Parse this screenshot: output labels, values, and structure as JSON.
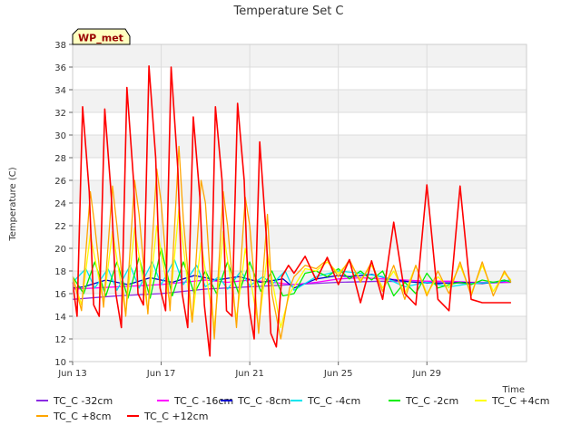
{
  "chart_data": {
    "type": "line",
    "title": "Temperature Set C",
    "ylabel": "Temperature (C)",
    "xlabel": "Time",
    "ylim": [
      10,
      38
    ],
    "xlim": [
      0,
      20.5
    ],
    "yticks": [
      10,
      12,
      14,
      16,
      18,
      20,
      22,
      24,
      26,
      28,
      30,
      32,
      34,
      36,
      38
    ],
    "xtick_positions": [
      0,
      4,
      8,
      12,
      16
    ],
    "xtick_labels": [
      "Jun 13",
      "Jun 17",
      "Jun 21",
      "Jun 25",
      "Jun 29"
    ],
    "grid": true,
    "badge": "WP_met",
    "colors": {
      "band": "#f2f2f2",
      "grid": "#dcdcdc",
      "badge_bg": "#ffffc0",
      "badge_text": "#990000"
    },
    "x_unit": "days since Jun 13",
    "series": [
      {
        "name": "TC_C -32cm",
        "color": "#8a2be2",
        "x": [
          0,
          2,
          4,
          6,
          8,
          10,
          12,
          14,
          16,
          18,
          19.8
        ],
        "y": [
          15.5,
          15.8,
          16.0,
          16.4,
          16.6,
          16.8,
          17.0,
          17.1,
          17.0,
          16.9,
          17.0
        ]
      },
      {
        "name": "TC_C -16cm",
        "color": "#ff00ff",
        "x": [
          0,
          1,
          2,
          3,
          4,
          5,
          6,
          7,
          8,
          9,
          10,
          11,
          12,
          13,
          14,
          15,
          16,
          17,
          18,
          19,
          19.8
        ],
        "y": [
          16.4,
          16.5,
          16.6,
          16.7,
          16.8,
          17.0,
          17.2,
          17.0,
          17.2,
          17.0,
          16.8,
          17.0,
          17.3,
          17.4,
          17.3,
          17.2,
          17.1,
          17.1,
          17.0,
          17.0,
          17.0
        ]
      },
      {
        "name": "TC_C -8cm",
        "color": "#0000cd",
        "x": [
          0,
          0.5,
          1.5,
          2.5,
          3.5,
          4.5,
          5.5,
          6.5,
          7.5,
          8.5,
          9.5,
          10,
          11,
          12,
          12.5,
          13.5,
          14.5,
          15.5,
          16.5,
          17.5,
          18.5,
          19.5,
          19.8
        ],
        "y": [
          16.5,
          16.6,
          17.2,
          16.8,
          17.4,
          17.0,
          17.6,
          17.2,
          17.5,
          17.0,
          17.3,
          16.5,
          17.3,
          17.6,
          17.5,
          17.7,
          17.2,
          17.0,
          16.9,
          17.0,
          16.9,
          17.1,
          17.2
        ]
      },
      {
        "name": "TC_C -4cm",
        "color": "#00e5ee",
        "x": [
          0,
          0.6,
          1.0,
          1.6,
          2.0,
          2.6,
          3.0,
          3.6,
          4.0,
          4.6,
          5.0,
          5.6,
          6.0,
          6.6,
          7.0,
          7.6,
          8.0,
          8.6,
          9.0,
          9.6,
          10.0,
          11,
          12,
          13,
          14,
          15,
          16,
          17,
          18,
          19,
          19.8
        ],
        "y": [
          17.0,
          18.2,
          16.5,
          18.2,
          16.3,
          18.5,
          16.5,
          18.8,
          16.8,
          19.0,
          16.8,
          18.5,
          16.6,
          17.5,
          16.4,
          18.0,
          16.7,
          17.5,
          16.8,
          18.0,
          16.3,
          17.5,
          18.0,
          17.8,
          17.5,
          16.6,
          17.0,
          16.6,
          16.9,
          17.0,
          17.2
        ]
      },
      {
        "name": "TC_C -2cm",
        "color": "#00ee00",
        "x": [
          0,
          0.5,
          1.0,
          1.5,
          2.0,
          2.5,
          3.0,
          3.5,
          4.0,
          4.5,
          5.0,
          5.5,
          6.0,
          6.5,
          7.0,
          7.5,
          8.0,
          8.5,
          9.0,
          9.5,
          10.0,
          10.5,
          11,
          11.5,
          12,
          12.5,
          13,
          13.5,
          14,
          14.5,
          15,
          15.5,
          16,
          16.5,
          17,
          17.5,
          18,
          18.5,
          19,
          19.5,
          19.8
        ],
        "y": [
          17.5,
          16.0,
          18.8,
          15.8,
          18.8,
          15.6,
          19.2,
          15.6,
          20.0,
          15.8,
          18.8,
          16.0,
          18.0,
          16.0,
          18.8,
          16.0,
          18.8,
          16.2,
          18.0,
          15.8,
          16.0,
          17.8,
          18.0,
          17.5,
          18.2,
          17.3,
          18.0,
          17.2,
          18.0,
          15.8,
          17.0,
          16.0,
          17.8,
          16.5,
          16.8,
          17.0,
          16.8,
          17.2,
          17.0,
          17.2,
          17.0
        ]
      },
      {
        "name": "TC_C +4cm",
        "color": "#ffff00",
        "x": [
          0,
          0.4,
          0.8,
          1.4,
          1.8,
          2.4,
          2.8,
          3.4,
          3.8,
          4.4,
          4.8,
          5.4,
          5.8,
          6.4,
          6.8,
          7.4,
          7.8,
          8.4,
          8.8,
          9.4,
          9.8,
          10.5,
          11,
          11.5,
          12,
          12.5,
          13,
          13.5,
          14,
          14.5,
          15,
          15.5,
          16,
          16.5,
          17,
          17.5,
          18,
          18.5,
          19,
          19.5,
          19.8
        ],
        "y": [
          17.5,
          15.0,
          21.2,
          15.2,
          21.5,
          14.2,
          21.8,
          14.5,
          22.0,
          15.0,
          23.5,
          13.5,
          20.5,
          13.0,
          21.5,
          13.8,
          20.0,
          13.0,
          19.5,
          13.0,
          16.0,
          18.2,
          18.0,
          18.8,
          17.8,
          18.8,
          17.2,
          18.5,
          16.5,
          18.0,
          16.0,
          18.5,
          16.0,
          17.5,
          16.5,
          18.5,
          16.0,
          18.5,
          16.2,
          17.8,
          17.2
        ]
      },
      {
        "name": "TC_C +8cm",
        "color": "#ffa500",
        "x": [
          0,
          0.4,
          0.8,
          1.0,
          1.4,
          1.8,
          2.0,
          2.4,
          2.8,
          3.0,
          3.4,
          3.8,
          4.0,
          4.4,
          4.8,
          5.0,
          5.4,
          5.8,
          6.0,
          6.4,
          6.8,
          7.0,
          7.4,
          7.8,
          8.0,
          8.4,
          8.8,
          9.0,
          9.4,
          9.8,
          10.0,
          10.5,
          11,
          11.5,
          12,
          12.5,
          13,
          13.5,
          14,
          14.5,
          15,
          15.5,
          16,
          16.5,
          17,
          17.5,
          18,
          18.5,
          19,
          19.5,
          19.8
        ],
        "y": [
          17.5,
          14.5,
          25.0,
          22.0,
          14.8,
          25.5,
          22.0,
          14.0,
          26.0,
          23.0,
          14.2,
          27.0,
          24.0,
          14.5,
          29.0,
          22.5,
          13.5,
          26.0,
          24.0,
          12.0,
          25.0,
          22.0,
          13.0,
          24.5,
          22.0,
          12.5,
          23.0,
          16.0,
          12.0,
          16.5,
          17.5,
          18.5,
          18.2,
          19.0,
          17.5,
          19.0,
          17.0,
          18.8,
          16.2,
          18.5,
          15.5,
          18.5,
          15.8,
          18.0,
          16.0,
          18.8,
          15.8,
          18.8,
          15.8,
          18.0,
          17.0
        ]
      },
      {
        "name": "TC_C +12cm",
        "color": "#ff0000",
        "x": [
          0,
          0.2,
          0.45,
          0.75,
          0.95,
          1.2,
          1.45,
          1.75,
          1.95,
          2.2,
          2.45,
          2.75,
          2.95,
          3.2,
          3.45,
          3.75,
          3.95,
          4.2,
          4.45,
          4.75,
          4.95,
          5.2,
          5.45,
          5.75,
          5.95,
          6.2,
          6.45,
          6.75,
          6.95,
          7.2,
          7.45,
          7.75,
          7.95,
          8.2,
          8.45,
          8.75,
          8.95,
          9.2,
          9.45,
          9.75,
          10.0,
          10.5,
          11,
          11.5,
          12,
          12.5,
          13,
          13.5,
          14,
          14.5,
          15,
          15.5,
          16,
          16.5,
          17,
          17.5,
          18,
          18.5,
          19,
          19.5,
          19.8
        ],
        "y": [
          17.0,
          14.0,
          32.5,
          25.0,
          15.0,
          14.0,
          32.3,
          24.5,
          16.0,
          13.0,
          34.2,
          26.0,
          16.0,
          15.0,
          36.1,
          28.0,
          16.5,
          14.5,
          36.0,
          27.0,
          16.0,
          13.0,
          31.6,
          24.5,
          15.0,
          10.5,
          32.5,
          26.0,
          14.5,
          14.0,
          32.8,
          26.0,
          15.0,
          12.0,
          29.4,
          21.0,
          12.5,
          11.3,
          17.5,
          18.5,
          17.8,
          19.3,
          17.2,
          19.2,
          16.8,
          19.0,
          15.2,
          18.9,
          15.5,
          22.3,
          16.0,
          15.0,
          25.6,
          15.5,
          14.5,
          25.5,
          15.5,
          15.2,
          15.2,
          15.2,
          15.2
        ]
      }
    ]
  }
}
